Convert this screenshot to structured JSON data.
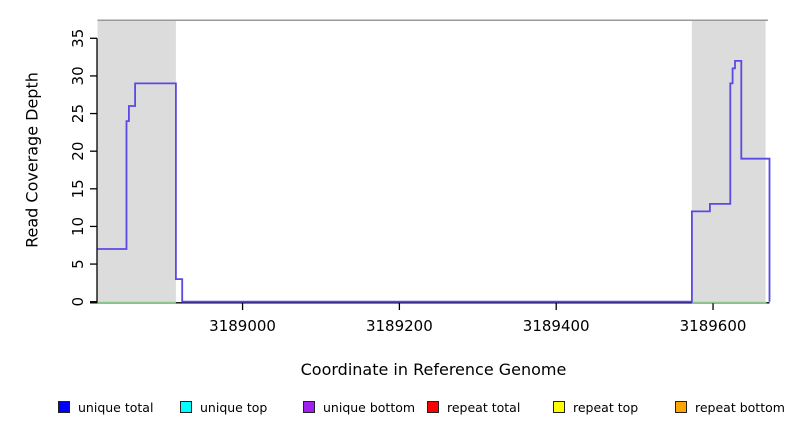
{
  "chart_data": {
    "type": "line",
    "subtype": "step-coverage",
    "title": "",
    "xlabel": "Coordinate in Reference Genome",
    "ylabel": "Read Coverage Depth",
    "xlim": [
      3188815,
      3189672
    ],
    "ylim": [
      0,
      37.5
    ],
    "xticks": [
      3189000,
      3189200,
      3189400,
      3189600
    ],
    "yticks": [
      0,
      5,
      10,
      15,
      20,
      25,
      30,
      35
    ],
    "grid": false,
    "boundary_line": {
      "y": 37.4,
      "color": "#9a9a9a"
    },
    "shaded_regions": [
      {
        "start": 3188815,
        "end": 3188915,
        "fill": "#dcdcdc"
      },
      {
        "start": 3189573,
        "end": 3189667,
        "fill": "#dcdcdc"
      }
    ],
    "series": [
      {
        "name": "coverage-depth-step-line",
        "color": "#5b49e3",
        "steps": [
          [
            3188815,
            3188852,
            7
          ],
          [
            3188852,
            3188855,
            24
          ],
          [
            3188855,
            3188863,
            26
          ],
          [
            3188863,
            3188915,
            29
          ],
          [
            3188915,
            3188923,
            3
          ],
          [
            3188923,
            3189573,
            0
          ],
          [
            3189573,
            3189596,
            12
          ],
          [
            3189596,
            3189622,
            13
          ],
          [
            3189622,
            3189625,
            29
          ],
          [
            3189625,
            3189628,
            31
          ],
          [
            3189628,
            3189636,
            32
          ],
          [
            3189636,
            3189672,
            19
          ]
        ],
        "end_drop_to_zero": true
      },
      {
        "name": "region-baseline",
        "color": "#8cc88c",
        "y": 0,
        "segments": [
          [
            3188815,
            3188915
          ],
          [
            3189573,
            3189668
          ]
        ]
      }
    ],
    "legend": [
      {
        "label": "unique total",
        "color": "#0000ff"
      },
      {
        "label": "unique top",
        "color": "#00ffff"
      },
      {
        "label": "unique bottom",
        "color": "#a020f0"
      },
      {
        "label": "repeat total",
        "color": "#ff0000"
      },
      {
        "label": "repeat top",
        "color": "#ffff00"
      },
      {
        "label": "repeat bottom",
        "color": "#ffa500"
      }
    ],
    "legend_position": "bottom",
    "axis_color": "#000000"
  }
}
